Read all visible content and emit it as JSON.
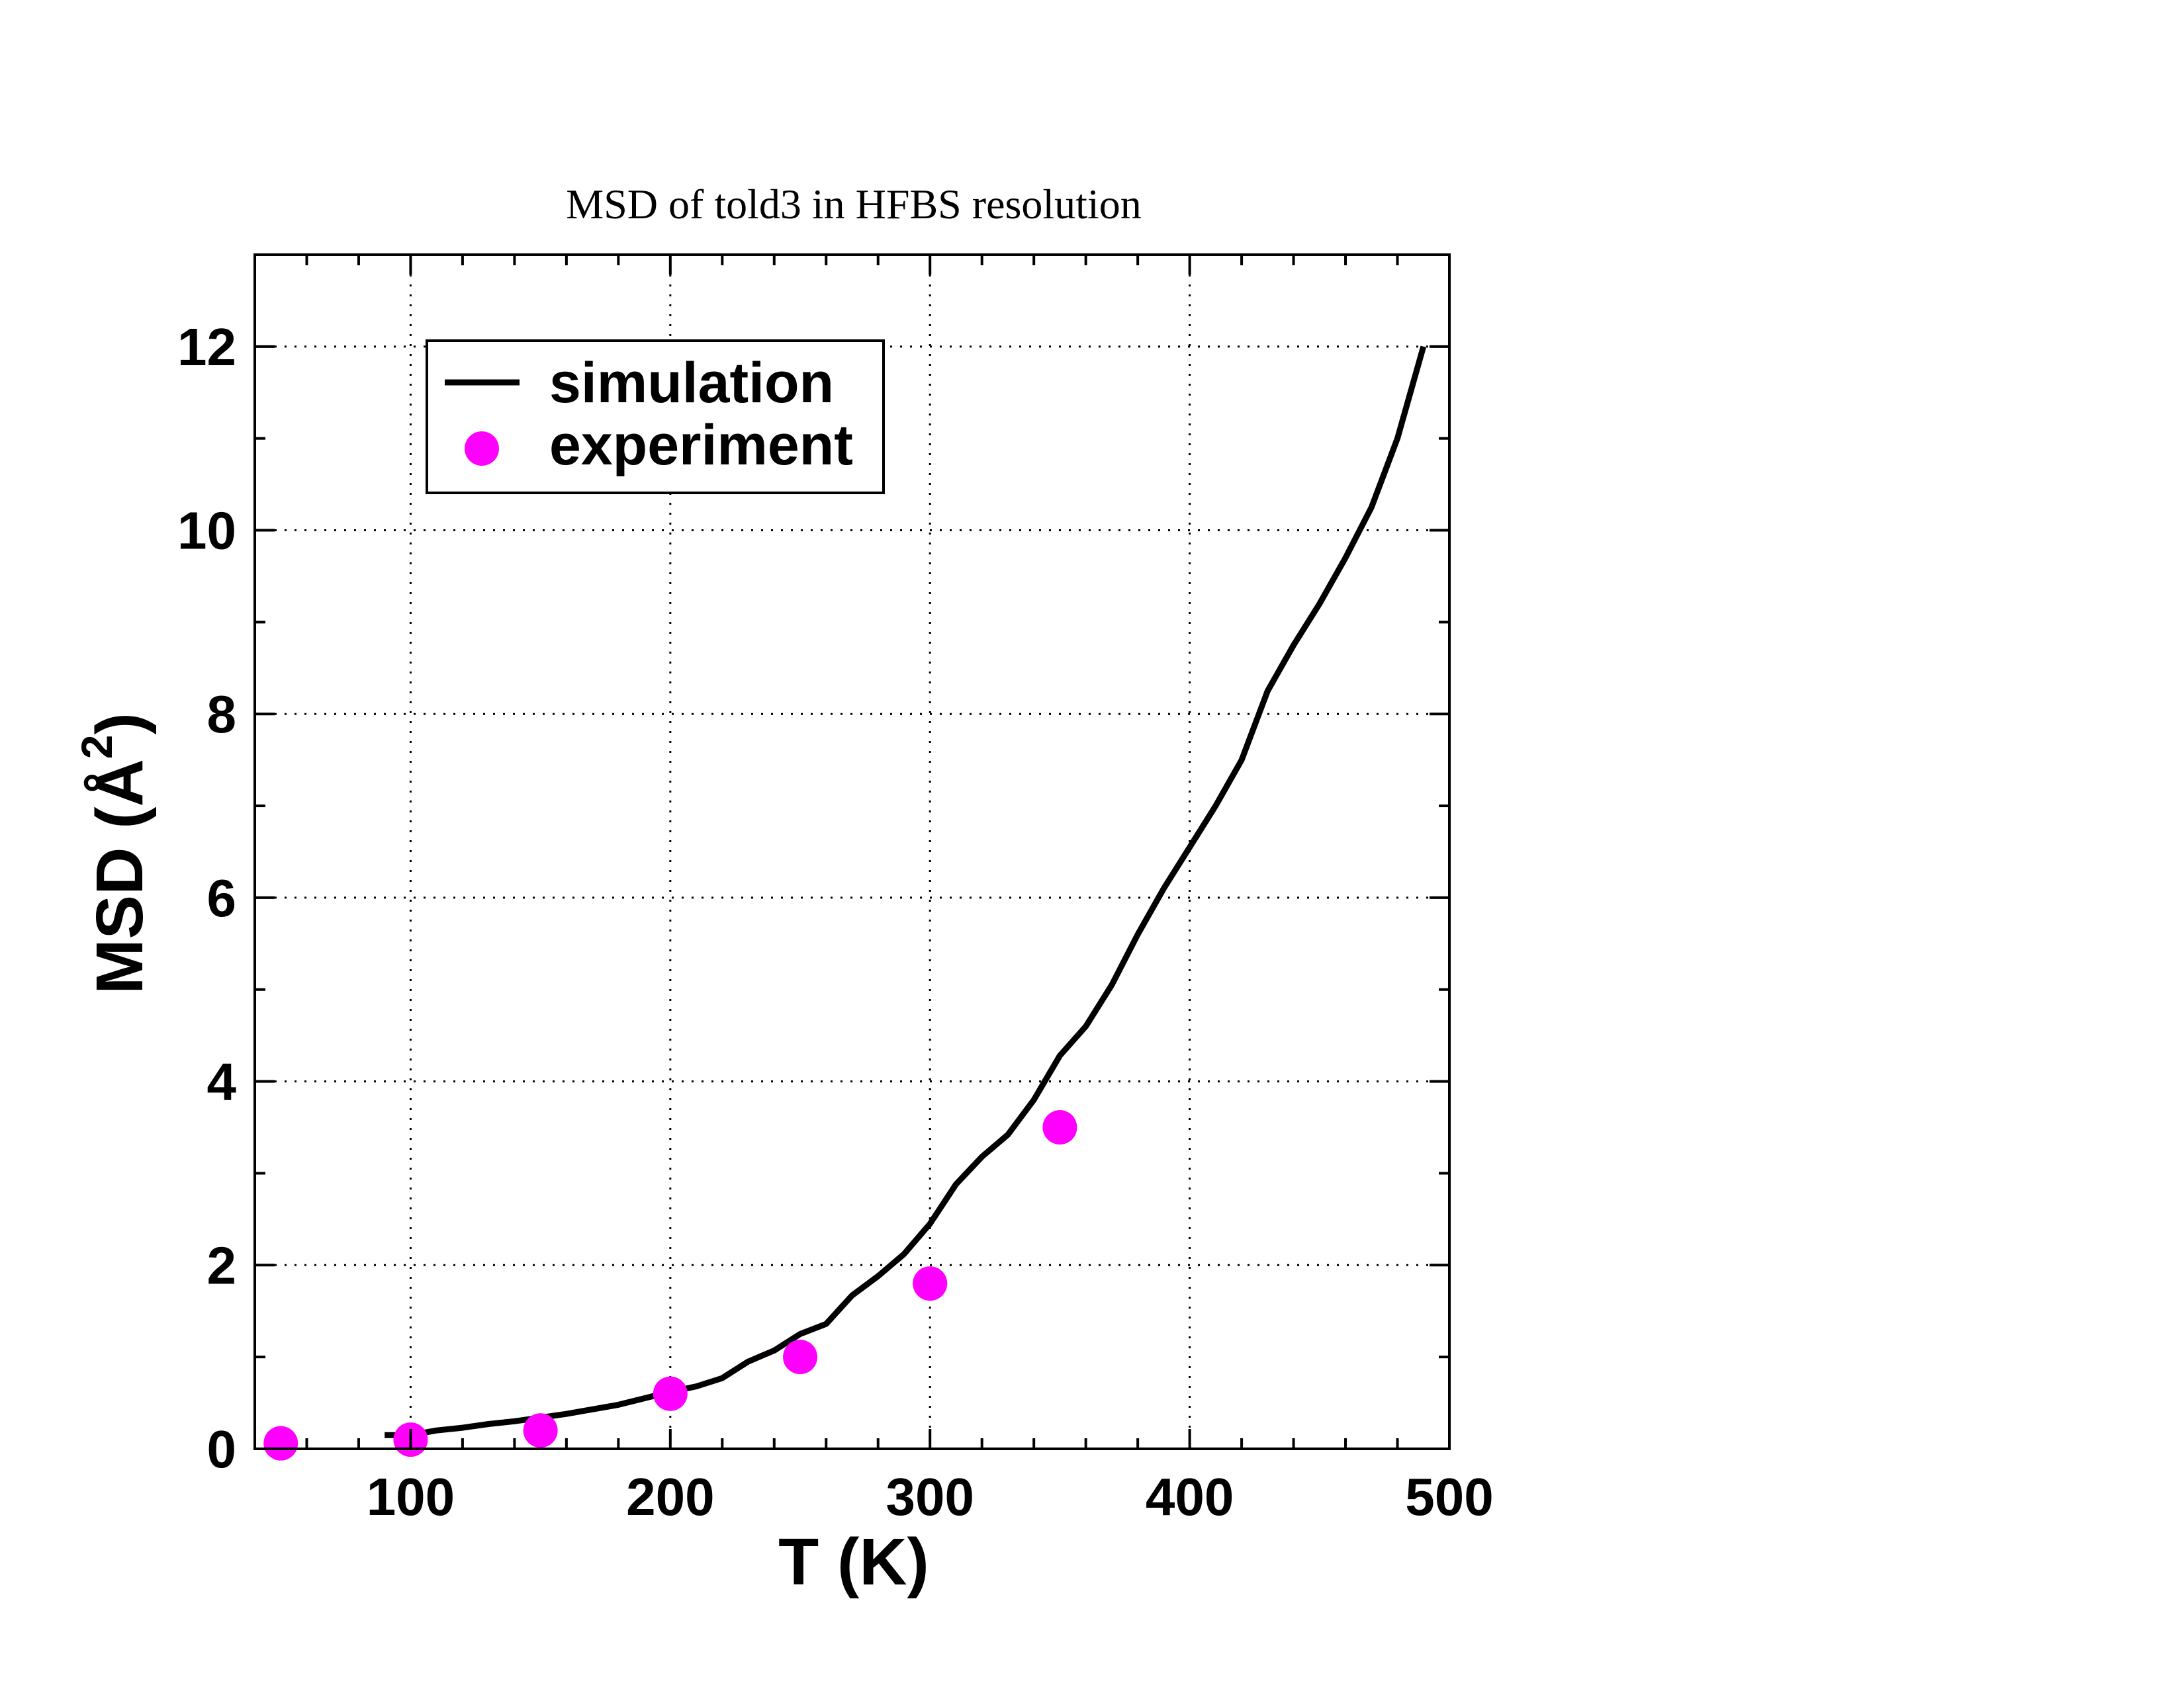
{
  "chart_data": {
    "type": "line",
    "title": "MSD of told3 in HFBS resolution",
    "xlabel": "T (K)",
    "ylabel": {
      "text": "MSD (",
      "unit_letter": "Å",
      "superscript": "2",
      "close": ")"
    },
    "xlim": [
      40,
      500
    ],
    "ylim": [
      0,
      13
    ],
    "x_ticks": [
      100,
      200,
      300,
      400,
      500
    ],
    "x_tick_labels": [
      "100",
      "200",
      "300",
      "400",
      "500"
    ],
    "y_ticks": [
      0,
      2,
      4,
      6,
      8,
      10,
      12
    ],
    "y_tick_labels": [
      "0",
      "2",
      "4",
      "6",
      "8",
      "10",
      "12"
    ],
    "grid": true,
    "legend_position": "top-left",
    "series": [
      {
        "name": "simulation",
        "style": "line",
        "color": "#000000",
        "x": [
          90,
          100,
          110,
          120,
          130,
          140,
          150,
          160,
          170,
          180,
          190,
          200,
          210,
          220,
          230,
          240,
          250,
          260,
          270,
          280,
          290,
          300,
          310,
          320,
          330,
          340,
          350,
          360,
          370,
          380,
          390,
          400,
          410,
          420,
          430,
          440,
          450,
          460,
          470,
          480,
          490
        ],
        "y": [
          0.15,
          0.15,
          0.2,
          0.23,
          0.27,
          0.3,
          0.34,
          0.38,
          0.43,
          0.48,
          0.55,
          0.62,
          0.68,
          0.77,
          0.95,
          1.07,
          1.25,
          1.36,
          1.67,
          1.88,
          2.12,
          2.45,
          2.88,
          3.18,
          3.42,
          3.8,
          4.28,
          4.6,
          5.05,
          5.6,
          6.1,
          6.55,
          7.0,
          7.5,
          8.25,
          8.75,
          9.2,
          9.7,
          10.25,
          11.0,
          12.0
        ]
      },
      {
        "name": "experiment",
        "style": "marker",
        "color": "#ff00ff",
        "x": [
          50,
          100,
          150,
          200,
          250,
          300,
          350
        ],
        "y": [
          0.06,
          0.1,
          0.2,
          0.6,
          1.0,
          1.8,
          3.5
        ]
      }
    ]
  }
}
